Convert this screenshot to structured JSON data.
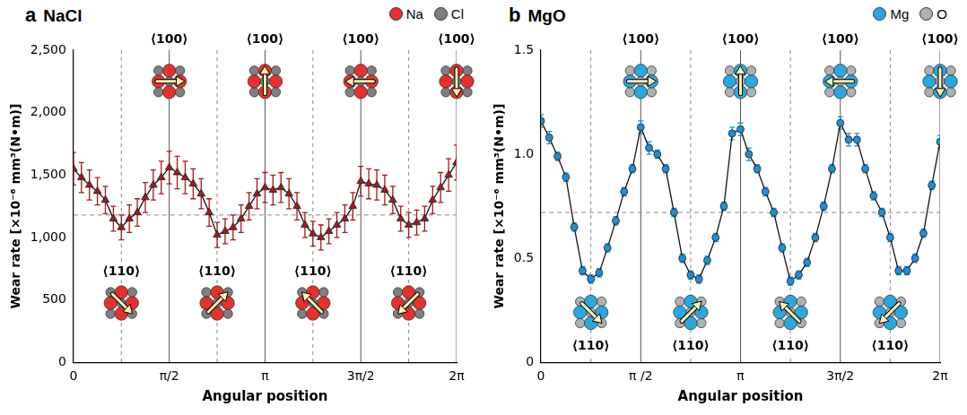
{
  "chart_data": [
    {
      "type": "line",
      "panel": "a",
      "title": "NaCl",
      "atoms": [
        {
          "name": "Na",
          "color": "#e8302c"
        },
        {
          "name": "Cl",
          "color": "#7f7f7f"
        }
      ],
      "x_label": "Angular position",
      "y_label": "Wear rate [×10⁻⁶ mm³(N•m)]",
      "x": [
        0,
        0.1309,
        0.2618,
        0.3927,
        0.5236,
        0.6545,
        0.7854,
        0.9163,
        1.0472,
        1.1781,
        1.309,
        1.4399,
        1.5708,
        1.7017,
        1.8326,
        1.9635,
        2.0944,
        2.2253,
        2.3562,
        2.4871,
        2.618,
        2.7489,
        2.8798,
        3.0107,
        3.1416,
        3.2725,
        3.4034,
        3.5343,
        3.6652,
        3.7961,
        3.927,
        4.0579,
        4.1888,
        4.3197,
        4.4506,
        4.5815,
        4.7124,
        4.8433,
        4.9742,
        5.1051,
        5.236,
        5.3669,
        5.4978,
        5.6287,
        5.7596,
        5.8905,
        6.0214,
        6.1523,
        6.2832
      ],
      "values": [
        1550,
        1480,
        1420,
        1370,
        1300,
        1150,
        1080,
        1150,
        1200,
        1320,
        1420,
        1480,
        1560,
        1520,
        1480,
        1430,
        1350,
        1200,
        1020,
        1050,
        1080,
        1150,
        1250,
        1350,
        1400,
        1380,
        1400,
        1350,
        1250,
        1100,
        1030,
        1000,
        1050,
        1100,
        1150,
        1250,
        1450,
        1430,
        1420,
        1380,
        1300,
        1150,
        1100,
        1120,
        1150,
        1300,
        1400,
        1500,
        1600
      ],
      "errors": [
        130,
        120,
        120,
        110,
        110,
        100,
        100,
        110,
        110,
        120,
        120,
        130,
        130,
        130,
        130,
        120,
        120,
        110,
        100,
        100,
        100,
        110,
        110,
        120,
        120,
        120,
        120,
        120,
        110,
        100,
        100,
        100,
        100,
        100,
        110,
        110,
        120,
        120,
        120,
        120,
        110,
        100,
        100,
        100,
        100,
        110,
        120,
        130,
        140
      ],
      "color": "#a11a1a",
      "marker": "triangle",
      "reference_line": 1180,
      "xlim": [
        0,
        6.2832
      ],
      "xticks": [
        0,
        {
          "value": 1.5708,
          "label": "π/2"
        },
        {
          "value": 3.1416,
          "label": "π"
        },
        {
          "value": 4.7124,
          "label": "3π/2"
        },
        {
          "value": 6.2832,
          "label": "2π"
        }
      ],
      "ylim": [
        0,
        2500
      ],
      "yticks": [
        0,
        500,
        {
          "value": 1000,
          "label": "1,000"
        },
        {
          "value": 1500,
          "label": "1,500"
        },
        {
          "value": 2000,
          "label": "2,000"
        },
        {
          "value": 2500,
          "label": "2,500"
        }
      ],
      "annotations": [
        {
          "text": "⟨100⟩",
          "x": 1.5708,
          "position": "top"
        },
        {
          "text": "⟨100⟩",
          "x": 3.1416,
          "position": "top"
        },
        {
          "text": "⟨100⟩",
          "x": 4.7124,
          "position": "top"
        },
        {
          "text": "⟨100⟩",
          "x": 6.2832,
          "position": "top"
        },
        {
          "text": "⟨110⟩",
          "x": 0.7854,
          "position": "bottom"
        },
        {
          "text": "⟨110⟩",
          "x": 2.3562,
          "position": "bottom"
        },
        {
          "text": "⟨110⟩",
          "x": 3.927,
          "position": "bottom"
        },
        {
          "text": "⟨110⟩",
          "x": 5.4978,
          "position": "bottom"
        }
      ],
      "grid": false
    },
    {
      "type": "line",
      "panel": "b",
      "title": "MgO",
      "atoms": [
        {
          "name": "Mg",
          "color": "#2aa7e0"
        },
        {
          "name": "O",
          "color": "#b0b0b0"
        }
      ],
      "x_label": "Angular position",
      "y_label": "Wear rate [×10⁻⁶ mm³(N•m)]",
      "x": [
        0,
        0.1309,
        0.2618,
        0.3927,
        0.5236,
        0.6545,
        0.7854,
        0.9163,
        1.0472,
        1.1781,
        1.309,
        1.4399,
        1.5708,
        1.7017,
        1.8326,
        1.9635,
        2.0944,
        2.2253,
        2.3562,
        2.4871,
        2.618,
        2.7489,
        2.8798,
        3.0107,
        3.1416,
        3.2725,
        3.4034,
        3.5343,
        3.6652,
        3.7961,
        3.927,
        4.0579,
        4.1888,
        4.3197,
        4.4506,
        4.5815,
        4.7124,
        4.8433,
        4.9742,
        5.1051,
        5.236,
        5.3669,
        5.4978,
        5.6287,
        5.7596,
        5.8905,
        6.0214,
        6.1523,
        6.2832
      ],
      "values": [
        1.16,
        1.08,
        0.99,
        0.89,
        0.65,
        0.44,
        0.4,
        0.43,
        0.55,
        0.68,
        0.82,
        0.93,
        1.13,
        1.03,
        1.0,
        0.93,
        0.72,
        0.5,
        0.42,
        0.4,
        0.49,
        0.6,
        0.75,
        1.1,
        1.12,
        1.0,
        0.93,
        0.82,
        0.72,
        0.55,
        0.39,
        0.42,
        0.48,
        0.6,
        0.75,
        0.93,
        1.15,
        1.07,
        1.07,
        0.93,
        0.8,
        0.72,
        0.6,
        0.44,
        0.44,
        0.5,
        0.62,
        0.85,
        1.06
      ],
      "errors": [
        0.03,
        0.03,
        0.02,
        0.02,
        0.02,
        0.02,
        0.02,
        0.02,
        0.02,
        0.02,
        0.02,
        0.02,
        0.03,
        0.03,
        0.02,
        0.02,
        0.02,
        0.02,
        0.02,
        0.02,
        0.02,
        0.02,
        0.02,
        0.03,
        0.03,
        0.03,
        0.02,
        0.02,
        0.02,
        0.02,
        0.02,
        0.02,
        0.02,
        0.02,
        0.02,
        0.02,
        0.03,
        0.03,
        0.03,
        0.02,
        0.02,
        0.02,
        0.02,
        0.02,
        0.02,
        0.02,
        0.02,
        0.02,
        0.03
      ],
      "color": "#1e8fd6",
      "marker": "circle",
      "reference_line": 0.72,
      "xlim": [
        0,
        6.2832
      ],
      "xticks": [
        0,
        {
          "value": 1.5708,
          "label": "π /2"
        },
        {
          "value": 3.1416,
          "label": "π"
        },
        {
          "value": 4.7124,
          "label": "3π/2"
        },
        {
          "value": 6.2832,
          "label": "2π"
        }
      ],
      "ylim": [
        0,
        1.5
      ],
      "yticks": [
        0,
        0.5,
        {
          "value": 1,
          "label": "1.0"
        },
        1.5
      ],
      "annotations": [
        {
          "text": "⟨100⟩",
          "x": 1.5708,
          "position": "top"
        },
        {
          "text": "⟨100⟩",
          "x": 3.1416,
          "position": "top"
        },
        {
          "text": "⟨100⟩",
          "x": 4.7124,
          "position": "top"
        },
        {
          "text": "⟨100⟩",
          "x": 6.2832,
          "position": "top"
        },
        {
          "text": "⟨110⟩",
          "x": 0.7854,
          "position": "bottom"
        },
        {
          "text": "⟨110⟩",
          "x": 2.3562,
          "position": "bottom"
        },
        {
          "text": "⟨110⟩",
          "x": 3.927,
          "position": "bottom"
        },
        {
          "text": "⟨110⟩",
          "x": 5.4978,
          "position": "bottom"
        }
      ],
      "grid": false
    }
  ]
}
